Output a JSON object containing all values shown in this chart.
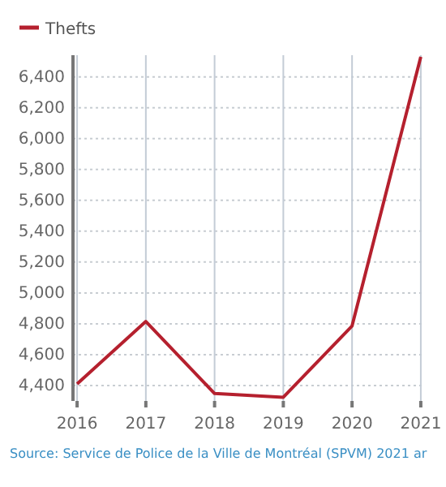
{
  "chart_data": {
    "type": "line",
    "categories": [
      "2016",
      "2017",
      "2018",
      "2019",
      "2020",
      "2021"
    ],
    "series": [
      {
        "name": "Thefts",
        "color": "#b5202e",
        "values": [
          4410,
          4815,
          4348,
          4324,
          4786,
          6530
        ]
      }
    ],
    "ylim": [
      4300,
      6540
    ],
    "yticks": [
      {
        "value": 4400,
        "label": "4,400"
      },
      {
        "value": 4600,
        "label": "4,600"
      },
      {
        "value": 4800,
        "label": "4,800"
      },
      {
        "value": 5000,
        "label": "5,000"
      },
      {
        "value": 5200,
        "label": "5,200"
      },
      {
        "value": 5400,
        "label": "5,400"
      },
      {
        "value": 5600,
        "label": "5,600"
      },
      {
        "value": 5800,
        "label": "5,800"
      },
      {
        "value": 6000,
        "label": "6,000"
      },
      {
        "value": 6200,
        "label": "6,200"
      },
      {
        "value": 6400,
        "label": "6,400"
      }
    ],
    "grid": true,
    "legend": "top left",
    "marker": "none",
    "line_style": "solid",
    "annotations": [
      "Source: Service de Police de la Ville de Montréal (SPVM) 2021 ar"
    ]
  }
}
